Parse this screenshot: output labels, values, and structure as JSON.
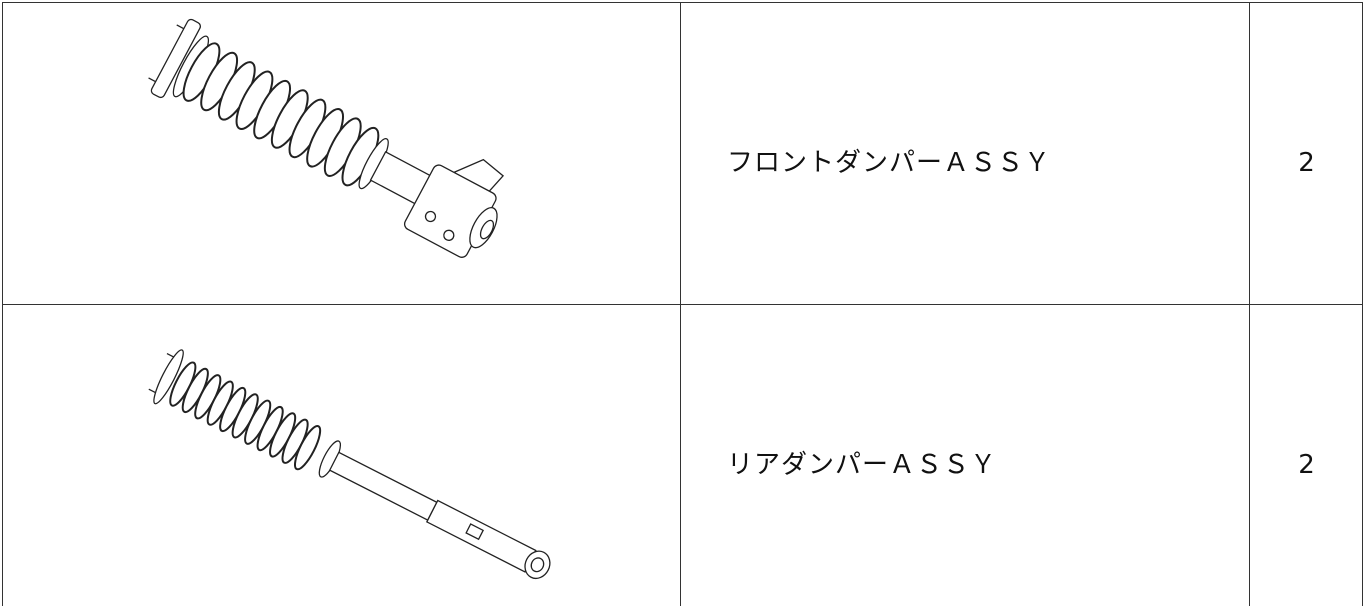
{
  "table": {
    "rows": [
      [
        "フロントダンパーＡＳＳＹ",
        2
      ],
      [
        "リアダンパーＡＳＳＹ",
        2
      ]
    ]
  }
}
